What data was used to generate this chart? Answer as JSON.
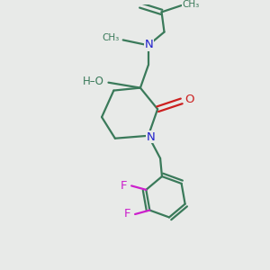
{
  "background_color": "#e8eae8",
  "bond_color": "#3a7a5a",
  "nitrogen_color": "#2020cc",
  "oxygen_color": "#cc2020",
  "fluorine_color": "#cc20cc",
  "ho_color": "#3a7a5a",
  "line_width": 1.6,
  "figsize": [
    3.0,
    3.0
  ],
  "dpi": 100,
  "xlim": [
    0,
    10
  ],
  "ylim": [
    0,
    10
  ]
}
